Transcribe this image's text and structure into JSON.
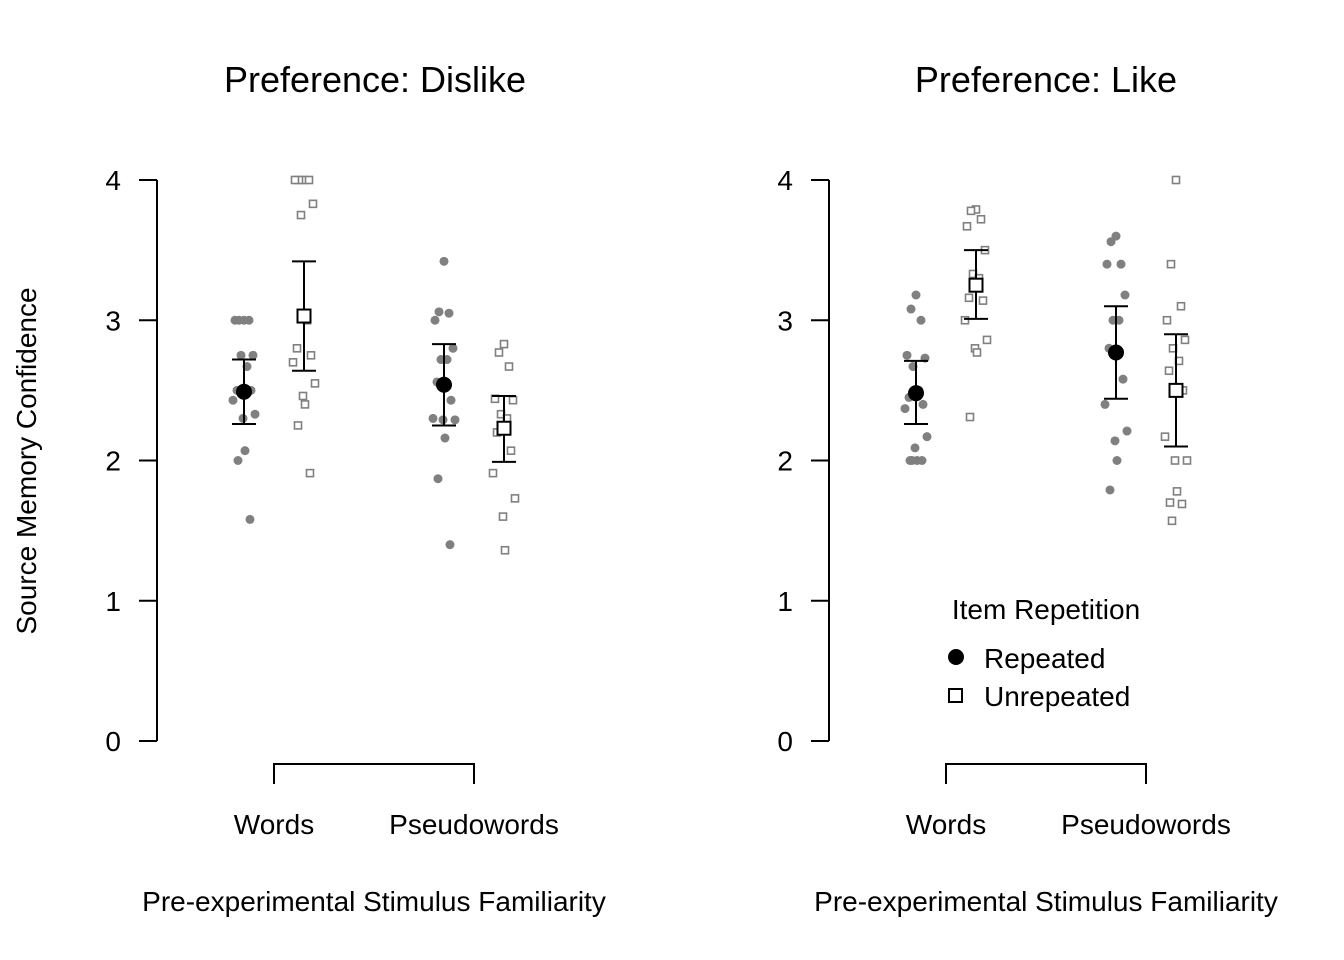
{
  "chart_data": [
    {
      "type": "scatter",
      "title": "Preference: Dislike",
      "xlabel": "Pre-experimental Stimulus Familiarity",
      "ylabel": "Source Memory Confidence",
      "ylim": [
        0,
        4
      ],
      "yticks": [
        "0",
        "1",
        "2",
        "3",
        "4"
      ],
      "categories": [
        "Words",
        "Pseudowords"
      ],
      "series": [
        {
          "name": "Repeated",
          "marker": "filled-circle",
          "color": "#000000",
          "raw_color": "#808080",
          "means": [
            2.49,
            2.54
          ],
          "ci_low": [
            2.26,
            2.25
          ],
          "ci_high": [
            2.72,
            2.83
          ],
          "raw": [
            [
              3.0,
              3.0,
              3.0,
              3.0,
              2.75,
              2.75,
              2.67,
              2.5,
              2.5,
              2.43,
              2.33,
              2.3,
              2.07,
              2.0,
              1.58
            ],
            [
              3.42,
              3.06,
              3.05,
              3.0,
              2.8,
              2.72,
              2.72,
              2.56,
              2.43,
              2.3,
              2.29,
              2.29,
              2.16,
              1.87,
              1.4
            ]
          ]
        },
        {
          "name": "Unrepeated",
          "marker": "open-square",
          "color": "#000000",
          "raw_color": "#808080",
          "means": [
            3.03,
            2.23
          ],
          "ci_low": [
            2.64,
            1.99
          ],
          "ci_high": [
            3.42,
            2.46
          ],
          "raw": [
            [
              4.0,
              4.0,
              4.0,
              4.0,
              3.83,
              3.75,
              3.0,
              2.8,
              2.75,
              2.7,
              2.55,
              2.46,
              2.4,
              2.25,
              1.91
            ],
            [
              2.83,
              2.77,
              2.67,
              2.44,
              2.43,
              2.33,
              2.3,
              2.2,
              2.07,
              1.91,
              1.73,
              1.6,
              1.36
            ]
          ]
        }
      ]
    },
    {
      "type": "scatter",
      "title": "Preference: Like",
      "xlabel": "Pre-experimental Stimulus Familiarity",
      "ylim": [
        0,
        4
      ],
      "yticks": [
        "0",
        "1",
        "2",
        "3",
        "4"
      ],
      "categories": [
        "Words",
        "Pseudowords"
      ],
      "legend": {
        "title": "Item Repetition",
        "entries": [
          "Repeated",
          "Unrepeated"
        ],
        "position": "bottom-center"
      },
      "series": [
        {
          "name": "Repeated",
          "marker": "filled-circle",
          "color": "#000000",
          "raw_color": "#808080",
          "means": [
            2.48,
            2.77
          ],
          "ci_low": [
            2.26,
            2.44
          ],
          "ci_high": [
            2.71,
            3.1
          ],
          "raw": [
            [
              3.18,
              3.08,
              3.0,
              2.75,
              2.73,
              2.67,
              2.5,
              2.45,
              2.4,
              2.37,
              2.17,
              2.09,
              2.0,
              2.0,
              2.0,
              2.0
            ],
            [
              3.6,
              3.56,
              3.4,
              3.4,
              3.18,
              3.0,
              3.0,
              2.8,
              2.58,
              2.4,
              2.21,
              2.14,
              2.0,
              1.79
            ]
          ]
        },
        {
          "name": "Unrepeated",
          "marker": "open-square",
          "color": "#000000",
          "raw_color": "#808080",
          "means": [
            3.25,
            2.5
          ],
          "ci_low": [
            3.01,
            2.1
          ],
          "ci_high": [
            3.5,
            2.9
          ],
          "raw": [
            [
              3.79,
              3.78,
              3.72,
              3.67,
              3.5,
              3.33,
              3.3,
              3.16,
              3.14,
              3.0,
              2.86,
              2.8,
              2.77,
              2.31
            ],
            [
              4.0,
              3.4,
              3.1,
              3.0,
              2.86,
              2.8,
              2.71,
              2.64,
              2.5,
              2.17,
              2.0,
              2.0,
              1.78,
              1.7,
              1.69,
              1.57
            ]
          ]
        }
      ]
    }
  ]
}
